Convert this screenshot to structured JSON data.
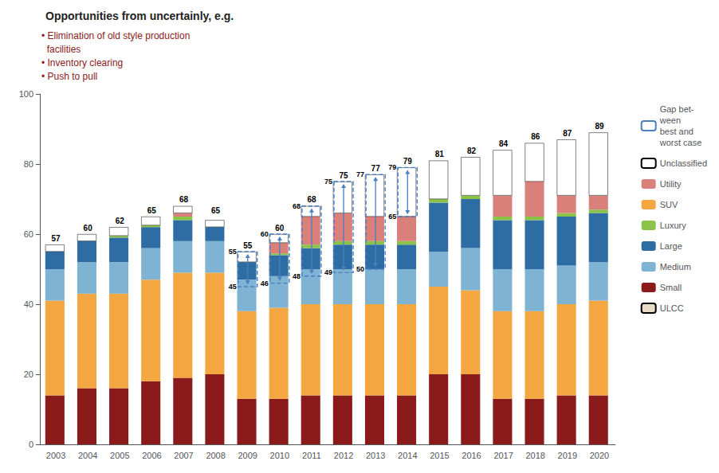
{
  "chart_data": {
    "type": "bar",
    "stacked": true,
    "title": "Opportunities from uncertainly, e.g.",
    "bullets": {
      "color": "#8b1a1a",
      "items": [
        "• Elimination of old style production\n  facilities",
        "• Inventory clearing",
        "• Push to pull"
      ]
    },
    "categories": [
      "2003",
      "2004",
      "2005",
      "2006",
      "2007",
      "2008",
      "2009",
      "2010",
      "2011",
      "2012",
      "2013",
      "2014",
      "2015",
      "2016",
      "2017",
      "2018",
      "2019",
      "2020"
    ],
    "series": [
      {
        "name": "Small",
        "color": "#8b1a1a",
        "values": [
          14,
          16,
          16,
          18,
          19,
          20,
          13,
          13,
          14,
          14,
          14,
          14,
          20,
          20,
          13,
          13,
          14,
          14
        ]
      },
      {
        "name": "SUV",
        "color": "#f4a641",
        "values": [
          27,
          27,
          27,
          29,
          30,
          29,
          25,
          26,
          26,
          26,
          26,
          26,
          25,
          24,
          25,
          25,
          26,
          27
        ]
      },
      {
        "name": "Medium",
        "color": "#7fb3d3",
        "values": [
          9,
          9,
          9,
          9,
          9,
          9,
          9,
          9,
          10,
          10,
          10,
          10,
          10,
          12,
          12,
          12,
          11,
          11
        ]
      },
      {
        "name": "Large",
        "color": "#2e6da4",
        "values": [
          5,
          6,
          7,
          6,
          6,
          4,
          5,
          6,
          6,
          7,
          7,
          7,
          14,
          14,
          14,
          14,
          14,
          14
        ]
      },
      {
        "name": "Luxury",
        "color": "#8bc34a",
        "values": [
          0,
          0,
          0.5,
          0.5,
          1,
          0,
          0,
          0.5,
          1,
          1,
          1,
          1,
          1,
          1,
          1,
          1,
          1,
          1
        ]
      },
      {
        "name": "Utility",
        "color": "#d9807b",
        "values": [
          0,
          0,
          0,
          0,
          1,
          0,
          0,
          3,
          8,
          8,
          7,
          7,
          0,
          0,
          6,
          10,
          5,
          4
        ]
      },
      {
        "name": "Unclassified",
        "color": "#ffffff",
        "values": [
          2,
          2,
          2.5,
          2.5,
          2,
          2,
          3,
          2.5,
          3,
          9,
          12,
          14,
          11,
          11,
          13,
          11,
          16,
          18
        ]
      }
    ],
    "totals": [
      57,
      60,
      62,
      65,
      68,
      65,
      55,
      60,
      68,
      75,
      77,
      79,
      81,
      82,
      84,
      86,
      87,
      89
    ],
    "gap_boxes": {
      "name": "Gap bet-\nween\nbest and\nworst case",
      "color": "#4a7ebf",
      "line_style": "dashed",
      "boxes": [
        {
          "category": "2009",
          "low": 45,
          "high": 55
        },
        {
          "category": "2010",
          "low": 46,
          "high": 60
        },
        {
          "category": "2011",
          "low": 48,
          "high": 68
        },
        {
          "category": "2012",
          "low": 49,
          "high": 75
        },
        {
          "category": "2013",
          "low": 50,
          "high": 77
        },
        {
          "category": "2014",
          "low": 65,
          "high": 79
        }
      ]
    },
    "legend_only": [
      {
        "name": "ULCC",
        "color": "#e8dcc8"
      }
    ],
    "legend_order": [
      "Gap bet-\nween\nbest and\nworst case",
      "Unclassified",
      "Utility",
      "SUV",
      "Luxury",
      "Large",
      "Medium",
      "Small",
      "ULCC"
    ],
    "legend": "right",
    "ylim": [
      0,
      100
    ],
    "yticks": [
      0,
      20,
      40,
      60,
      80,
      100
    ],
    "grid": false
  }
}
